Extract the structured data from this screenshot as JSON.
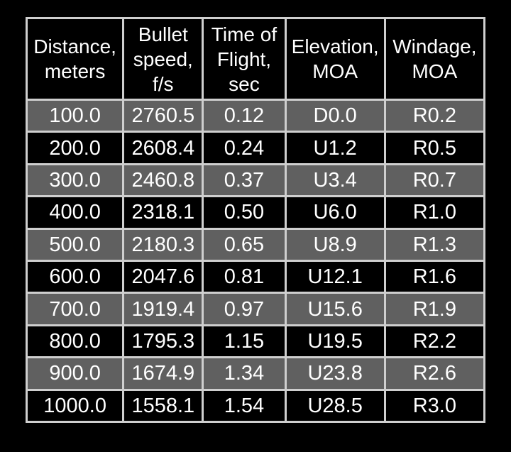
{
  "table": {
    "headers": [
      "Distance,\nmeters",
      "Bullet\nspeed,\nf/s",
      "Time of\nFlight,\nsec",
      "Elevation,\nMOA",
      "Windage,\nMOA"
    ],
    "rows": [
      [
        "100.0",
        "2760.5",
        "0.12",
        "D0.0",
        "R0.2"
      ],
      [
        "200.0",
        "2608.4",
        "0.24",
        "U1.2",
        "R0.5"
      ],
      [
        "300.0",
        "2460.8",
        "0.37",
        "U3.4",
        "R0.7"
      ],
      [
        "400.0",
        "2318.1",
        "0.50",
        "U6.0",
        "R1.0"
      ],
      [
        "500.0",
        "2180.3",
        "0.65",
        "U8.9",
        "R1.3"
      ],
      [
        "600.0",
        "2047.6",
        "0.81",
        "U12.1",
        "R1.6"
      ],
      [
        "700.0",
        "1919.4",
        "0.97",
        "U15.6",
        "R1.9"
      ],
      [
        "800.0",
        "1795.3",
        "1.15",
        "U19.5",
        "R2.2"
      ],
      [
        "900.0",
        "1674.9",
        "1.34",
        "U23.8",
        "R2.6"
      ],
      [
        "1000.0",
        "1558.1",
        "1.54",
        "U28.5",
        "R3.0"
      ]
    ]
  },
  "colors": {
    "background": "#000000",
    "grid": "#cfcfcf",
    "shaded_row": "#606060",
    "plain_row": "#000000",
    "text": "#ffffff"
  }
}
